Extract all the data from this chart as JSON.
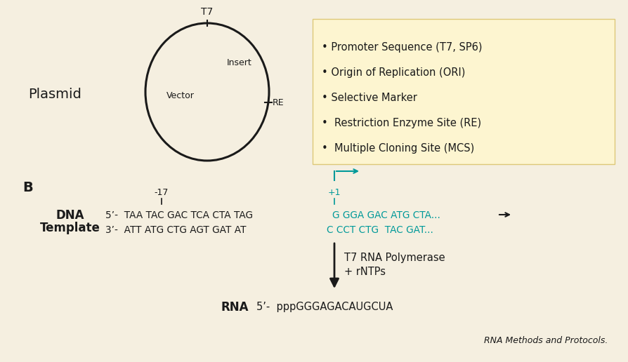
{
  "background_color": "#f5efe0",
  "box_color": "#fdf5d0",
  "box_edge_color": "#ddc878",
  "teal_color": "#009999",
  "black_color": "#1a1a1a",
  "plasmid_label": "Plasmid",
  "section_b_label": "B",
  "t7_label": "T7",
  "insert_label": "Insert",
  "vector_label": "Vector",
  "re_label": "RE",
  "box_items": [
    "Promoter Sequence (T7, SP6)",
    "Origin of Replication (ORI)",
    "Selective Marker",
    " Restriction Enzyme Site (RE)",
    " Multiple Cloning Site (MCS)"
  ],
  "dna_label_line1": "DNA",
  "dna_label_line2": "Template",
  "minus17_label": "-17",
  "plus1_label": "+1",
  "strand5_black": "5’-  TAA TAC GAC TCA CTA TAG",
  "strand5_teal": "G GGA GAC ATG CTA...",
  "strand3_black": "3’-  ATT ATG CTG AGT GAT AT",
  "strand3_teal": "C CCT CTG  TAC GAT...",
  "polymerase_label_line1": "T7 RNA Polymerase",
  "polymerase_label_line2": "+ rNTPs",
  "rna_label": "RNA",
  "rna_seq": "5’-  pppGGGAGACAUGCUA",
  "citation": "RNA Methods and Protocols."
}
